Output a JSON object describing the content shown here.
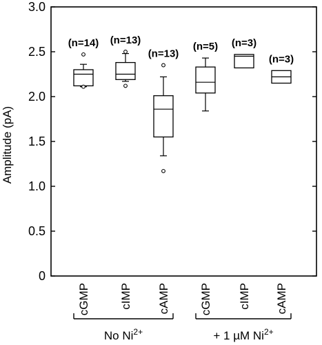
{
  "chart_data": {
    "type": "box",
    "ylabel": "Amplitude (pA)",
    "ylim": [
      0,
      3.0
    ],
    "yticks": [
      "0",
      "0.5",
      "1.0",
      "1.5",
      "2.0",
      "2.5",
      "3.0"
    ],
    "grid": false,
    "groups": [
      {
        "label": "No Ni",
        "superscript": "2+"
      },
      {
        "label": "+ 1 µM Ni",
        "superscript": "2+"
      }
    ],
    "series": [
      {
        "category": "cGMP",
        "group": 0,
        "n_label": "(n=14)",
        "whisker_low": 2.11,
        "q1": 2.12,
        "median": 2.25,
        "q3": 2.3,
        "whisker_high": 2.36,
        "outliers": [
          2.47,
          2.11
        ]
      },
      {
        "category": "cIMP",
        "group": 0,
        "n_label": "(n=13)",
        "whisker_low": 2.17,
        "q1": 2.19,
        "median": 2.25,
        "q3": 2.38,
        "whisker_high": 2.48,
        "outliers": [
          2.5,
          2.12
        ]
      },
      {
        "category": "cAMP",
        "group": 0,
        "n_label": "(n=13)",
        "whisker_low": 1.34,
        "q1": 1.55,
        "median": 1.86,
        "q3": 2.01,
        "whisker_high": 2.22,
        "outliers": [
          2.35,
          1.17
        ]
      },
      {
        "category": "cGMP",
        "group": 1,
        "n_label": "(n=5)",
        "whisker_low": 1.84,
        "q1": 2.04,
        "median": 2.16,
        "q3": 2.33,
        "whisker_high": 2.43,
        "outliers": []
      },
      {
        "category": "cIMP",
        "group": 1,
        "n_label": "(n=3)",
        "whisker_low": 2.32,
        "q1": 2.32,
        "median": 2.45,
        "q3": 2.47,
        "whisker_high": 2.47,
        "outliers": []
      },
      {
        "category": "cAMP",
        "group": 1,
        "n_label": "(n=3)",
        "whisker_low": 2.15,
        "q1": 2.15,
        "median": 2.22,
        "q3": 2.29,
        "whisker_high": 2.29,
        "outliers": []
      }
    ]
  }
}
